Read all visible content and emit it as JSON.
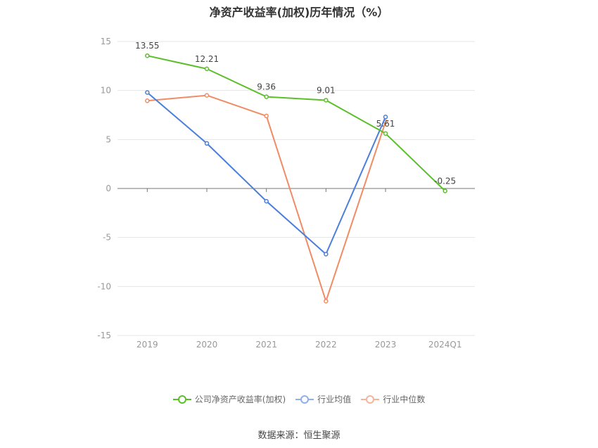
{
  "chart_data": {
    "type": "line",
    "title": "净资产收益率(加权)历年情况（%）",
    "categories": [
      "2019",
      "2020",
      "2021",
      "2022",
      "2023",
      "2024Q1"
    ],
    "ylim": [
      -15,
      15
    ],
    "yticks": [
      15,
      10,
      5,
      0,
      -5,
      -10,
      -15
    ],
    "grid": true,
    "legend_position": "bottom",
    "series": [
      {
        "name": "公司净资产收益率(加权)",
        "color": "#5bbf2a",
        "values": [
          13.55,
          12.21,
          9.36,
          9.01,
          5.61,
          -0.25
        ],
        "labels": [
          "13.55",
          "12.21",
          "9.36",
          "9.01",
          "5.61",
          "-0.25"
        ]
      },
      {
        "name": "行业均值",
        "color": "#4a7fdc",
        "values": [
          9.8,
          4.6,
          -1.3,
          -6.7,
          7.3,
          null
        ]
      },
      {
        "name": "行业中位数",
        "color": "#f08c65",
        "values": [
          8.95,
          9.5,
          7.4,
          -11.5,
          6.8,
          null
        ]
      }
    ]
  },
  "source": "数据来源：恒生聚源"
}
